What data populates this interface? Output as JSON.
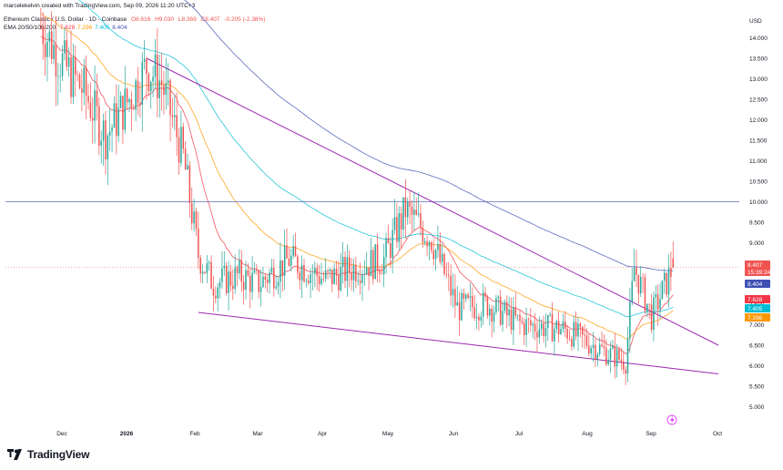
{
  "header": {
    "created_by": "marcelekelvin created with TradingView.com, Sep 09, 2026 11:20 UTC+3",
    "symbol": "Ethereum Classic / U.S. Dollar · 1D · Coinbase",
    "o": "O8.616",
    "h": "H9.030",
    "l": "L8.369",
    "c": "C8.407",
    "chg": "-0.205 (-2.38%)",
    "ema_label": "EMA 20/50/100/200",
    "ema_vals": [
      "7.628",
      "7.296",
      "7.405",
      "8.404"
    ]
  },
  "axis": {
    "currency": "USD",
    "y_ticks": [
      "14.000",
      "13.500",
      "13.000",
      "12.500",
      "12.000",
      "11.500",
      "11.000",
      "10.500",
      "10.000",
      "9.500",
      "9.000",
      "8.500",
      "8.000",
      "7.500",
      "7.000",
      "6.500",
      "6.000",
      "5.500",
      "5.000"
    ],
    "x_ticks": [
      "Dec",
      "2026",
      "Feb",
      "Mar",
      "Apr",
      "May",
      "Jun",
      "Jul",
      "Aug",
      "Sep",
      "Oct"
    ]
  },
  "price_tags": {
    "last": "8.407",
    "countdown": "15:39:24",
    "ema200": "8.404",
    "ema20": "7.628",
    "ema100": "7.405",
    "ema50": "7.296"
  },
  "colors": {
    "up": "#26a69a",
    "down": "#ef5350",
    "ema20": "#f23645",
    "ema50": "#ff9800",
    "ema100": "#00bcd4",
    "ema200": "#3f51b5",
    "trendline": "#9c27b0",
    "hline": "#5c6bc0"
  },
  "footer": {
    "brand": "TradingView"
  },
  "chart_data": {
    "type": "candlestick",
    "title": "Ethereum Classic / U.S. Dollar · 1D · Coinbase",
    "ylabel": "USD",
    "ylim": [
      4.6,
      14.9
    ],
    "x_labels": [
      "Dec",
      "2026",
      "Feb",
      "Mar",
      "Apr",
      "May",
      "Jun",
      "Jul",
      "Aug",
      "Sep",
      "Oct"
    ],
    "price_path": [
      {
        "date": "Nov 20",
        "close": 14.3
      },
      {
        "date": "Dec 1",
        "close": 13.3
      },
      {
        "date": "Dec 10",
        "close": 12.7
      },
      {
        "date": "Dec 20",
        "close": 11.6
      },
      {
        "date": "Jan 1",
        "close": 12.6
      },
      {
        "date": "Jan 8",
        "close": 13.3
      },
      {
        "date": "Jan 15",
        "close": 12.9
      },
      {
        "date": "Jan 25",
        "close": 11.1
      },
      {
        "date": "Feb 1",
        "close": 8.7
      },
      {
        "date": "Feb 8",
        "close": 8.0
      },
      {
        "date": "Feb 20",
        "close": 8.2
      },
      {
        "date": "Mar 1",
        "close": 8.0
      },
      {
        "date": "Mar 15",
        "close": 8.6
      },
      {
        "date": "Apr 1",
        "close": 8.1
      },
      {
        "date": "Apr 15",
        "close": 8.4
      },
      {
        "date": "Apr 28",
        "close": 8.6
      },
      {
        "date": "May 8",
        "close": 9.8
      },
      {
        "date": "May 20",
        "close": 9.1
      },
      {
        "date": "Jun 1",
        "close": 7.4
      },
      {
        "date": "Jun 15",
        "close": 7.5
      },
      {
        "date": "Jul 1",
        "close": 7.0
      },
      {
        "date": "Jul 20",
        "close": 6.9
      },
      {
        "date": "Aug 10",
        "close": 6.3
      },
      {
        "date": "Aug 18",
        "close": 6.1
      },
      {
        "date": "Aug 22",
        "close": 8.4
      },
      {
        "date": "Aug 30",
        "close": 7.2
      },
      {
        "date": "Sep 9",
        "close": 8.407
      }
    ],
    "series": [
      {
        "name": "EMA 20",
        "last": 7.628
      },
      {
        "name": "EMA 50",
        "last": 7.296
      },
      {
        "name": "EMA 100",
        "last": 7.405
      },
      {
        "name": "EMA 200",
        "last": 8.404
      }
    ],
    "horizontal_line": 10.0,
    "trendlines": [
      {
        "from": {
          "date": "Jan 8",
          "price": 13.5
        },
        "to": {
          "date": "Sep 30",
          "price": 6.5
        }
      },
      {
        "from": {
          "date": "Feb 1",
          "price": 7.3
        },
        "to": {
          "date": "Sep 30",
          "price": 5.8
        }
      }
    ],
    "grid": false
  }
}
